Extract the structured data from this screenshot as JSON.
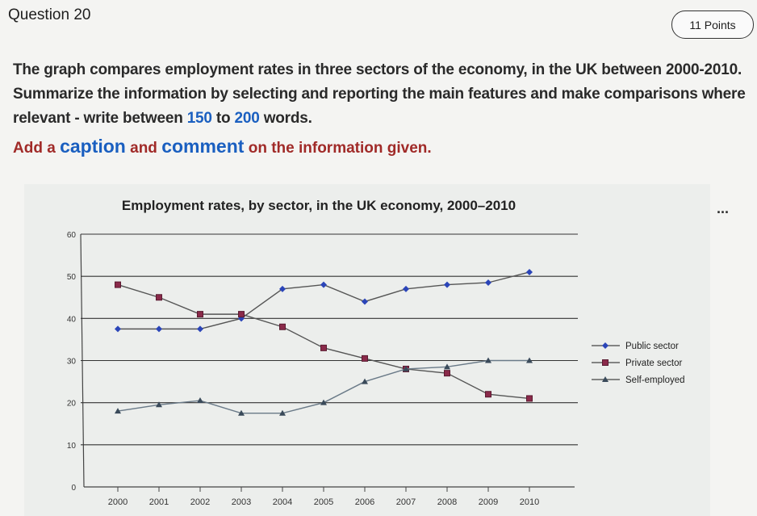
{
  "question": {
    "title": "Question 20",
    "points": "11 Points"
  },
  "prompt": {
    "part1": "The graph compares employment rates in three sectors of the economy, in the UK between 2000-2010. Summarize the information by selecting and reporting the main features and make comparisons where relevant - write between ",
    "min_words": "150",
    "to": " to ",
    "max_words": "200",
    "words": " words.",
    "add_a": "Add a ",
    "caption": "caption",
    "and": " and ",
    "comment": "comment",
    "rest": " on the information given."
  },
  "more_label": "...",
  "colors": {
    "public": "#2b45b8",
    "private": "#8a2a4a",
    "self": "#3a4a5a",
    "prompt_blue": "#1a5fc0",
    "prompt_red": "#a02a28"
  },
  "chart_data": {
    "type": "line",
    "title": "Employment rates, by sector, in the UK economy, 2000–2010",
    "xlabel": "",
    "ylabel": "",
    "x": [
      2000,
      2001,
      2002,
      2003,
      2004,
      2005,
      2006,
      2007,
      2008,
      2009,
      2010
    ],
    "ylim": [
      0,
      60
    ],
    "yticks": [
      0,
      10,
      20,
      30,
      40,
      50,
      60
    ],
    "grid": true,
    "legend": "right",
    "series": [
      {
        "name": "Public sector",
        "marker": "diamond",
        "values": [
          37.5,
          37.5,
          37.5,
          40,
          47,
          48,
          44,
          47,
          48,
          48.5,
          51
        ]
      },
      {
        "name": "Private sector",
        "marker": "square",
        "values": [
          48,
          45,
          41,
          41,
          38,
          33,
          30.5,
          28,
          27,
          22,
          21
        ]
      },
      {
        "name": "Self-employed",
        "marker": "triangle",
        "values": [
          18,
          19.5,
          20.5,
          17.5,
          17.5,
          20,
          25,
          28,
          28.5,
          30,
          30
        ]
      }
    ]
  }
}
